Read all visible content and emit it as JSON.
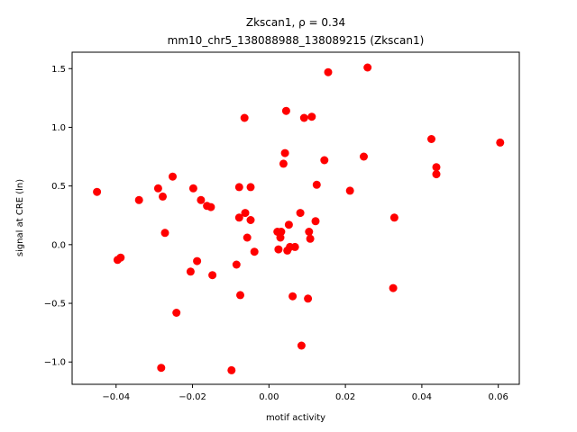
{
  "chart_data": {
    "type": "scatter",
    "title": "Zkscan1, ρ = 0.34",
    "subtitle": "mm10_chr5_138088988_138089215 (Zkscan1)",
    "xlabel": "motif activity",
    "ylabel": "signal at CRE (ln)",
    "xlim": [
      -0.0515,
      0.0655
    ],
    "ylim": [
      -1.19,
      1.64
    ],
    "xticks": [
      -0.04,
      -0.02,
      0.0,
      0.02,
      0.04,
      0.06
    ],
    "xtick_labels": [
      "−0.04",
      "−0.02",
      "0.00",
      "0.02",
      "0.04",
      "0.06"
    ],
    "yticks": [
      -1.0,
      -0.5,
      0.0,
      0.5,
      1.0,
      1.5
    ],
    "ytick_labels": [
      "−1.0",
      "−0.5",
      "0.0",
      "0.5",
      "1.0",
      "1.5"
    ],
    "grid": false,
    "marker_color": "#ff0000",
    "points": [
      [
        -0.045,
        0.45
      ],
      [
        -0.0396,
        -0.13
      ],
      [
        -0.0388,
        -0.11
      ],
      [
        -0.034,
        0.38
      ],
      [
        -0.029,
        0.48
      ],
      [
        -0.0278,
        0.41
      ],
      [
        -0.0272,
        0.1
      ],
      [
        -0.0282,
        -1.05
      ],
      [
        -0.0252,
        0.58
      ],
      [
        -0.0242,
        -0.58
      ],
      [
        -0.0198,
        0.48
      ],
      [
        -0.0205,
        -0.23
      ],
      [
        -0.0188,
        -0.14
      ],
      [
        -0.0178,
        0.38
      ],
      [
        -0.0162,
        0.33
      ],
      [
        -0.0152,
        0.32
      ],
      [
        -0.0148,
        -0.26
      ],
      [
        -0.0098,
        -1.07
      ],
      [
        -0.0085,
        -0.17
      ],
      [
        -0.0078,
        0.49
      ],
      [
        -0.0078,
        0.23
      ],
      [
        -0.0075,
        -0.43
      ],
      [
        -0.0064,
        1.08
      ],
      [
        -0.0062,
        0.27
      ],
      [
        -0.0057,
        0.06
      ],
      [
        -0.0048,
        0.49
      ],
      [
        -0.0048,
        0.21
      ],
      [
        -0.0038,
        -0.06
      ],
      [
        0.0022,
        0.11
      ],
      [
        0.0025,
        -0.04
      ],
      [
        0.003,
        0.06
      ],
      [
        0.0032,
        0.11
      ],
      [
        0.0038,
        0.69
      ],
      [
        0.0042,
        0.78
      ],
      [
        0.0045,
        1.14
      ],
      [
        0.0048,
        -0.05
      ],
      [
        0.0052,
        0.17
      ],
      [
        0.0055,
        -0.02
      ],
      [
        0.0062,
        -0.44
      ],
      [
        0.0068,
        -0.02
      ],
      [
        0.0082,
        0.27
      ],
      [
        0.0085,
        -0.86
      ],
      [
        0.0092,
        1.08
      ],
      [
        0.0102,
        -0.46
      ],
      [
        0.0105,
        0.11
      ],
      [
        0.0108,
        0.05
      ],
      [
        0.0112,
        1.09
      ],
      [
        0.0122,
        0.2
      ],
      [
        0.0125,
        0.51
      ],
      [
        0.0145,
        0.72
      ],
      [
        0.0155,
        1.47
      ],
      [
        0.0212,
        0.46
      ],
      [
        0.0248,
        0.75
      ],
      [
        0.0258,
        1.51
      ],
      [
        0.0325,
        -0.37
      ],
      [
        0.0328,
        0.23
      ],
      [
        0.0425,
        0.9
      ],
      [
        0.0438,
        0.66
      ],
      [
        0.0438,
        0.6
      ],
      [
        0.0605,
        0.87
      ]
    ]
  }
}
